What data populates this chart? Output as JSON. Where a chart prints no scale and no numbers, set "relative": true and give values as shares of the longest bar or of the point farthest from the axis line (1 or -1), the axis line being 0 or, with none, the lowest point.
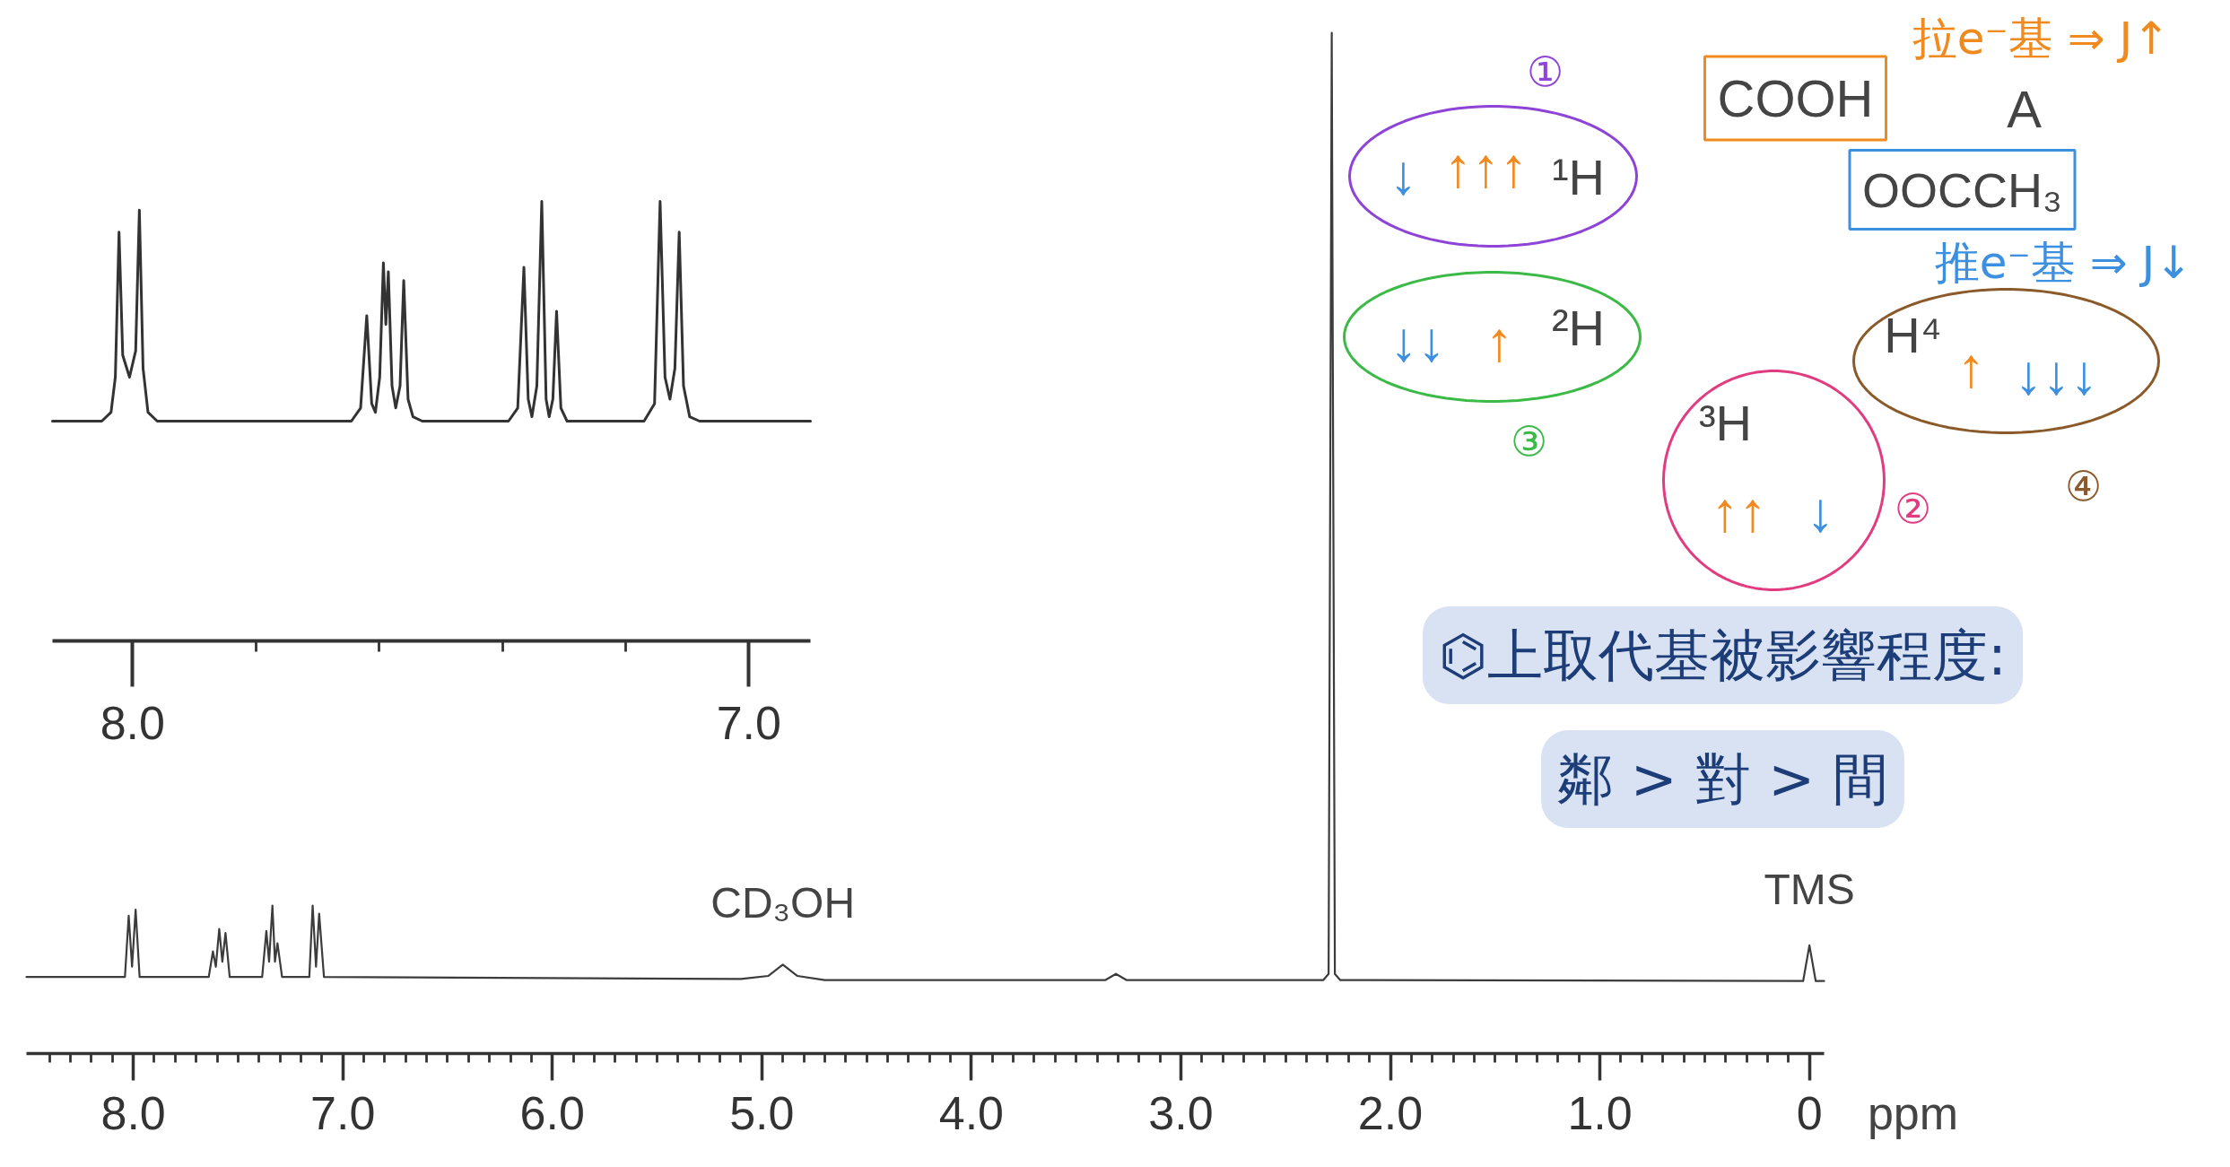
{
  "chart_data": [
    {
      "type": "line",
      "relative": true,
      "color": "#3c3c3c",
      "xlabel": "ppm",
      "x": [
        8.51,
        8.04,
        8.022,
        8.006,
        7.989,
        7.97,
        7.64,
        7.62,
        7.606,
        7.59,
        7.575,
        7.56,
        7.54,
        7.385,
        7.365,
        7.352,
        7.336,
        7.324,
        7.312,
        7.29,
        7.16,
        7.144,
        7.128,
        7.113,
        7.09,
        5.1,
        4.97,
        4.9,
        4.83,
        4.7,
        3.36,
        3.31,
        3.26,
        2.32,
        2.295,
        2.28,
        2.265,
        2.24,
        0.03,
        0.0,
        -0.03,
        -0.07
      ],
      "values": [
        0.075,
        0.075,
        0.135,
        0.085,
        0.141,
        0.075,
        0.075,
        0.1,
        0.085,
        0.122,
        0.09,
        0.118,
        0.075,
        0.075,
        0.12,
        0.09,
        0.145,
        0.09,
        0.108,
        0.075,
        0.075,
        0.145,
        0.085,
        0.137,
        0.075,
        0.073,
        0.076,
        0.087,
        0.076,
        0.072,
        0.072,
        0.078,
        0.072,
        0.072,
        0.078,
        1.0,
        0.078,
        0.072,
        0.071,
        0.106,
        0.071,
        0.071
      ],
      "xlim": [
        8.51,
        -0.07
      ],
      "xticks": [
        {
          "value": 8.4,
          "label": null
        },
        {
          "value": 8.3,
          "label": null
        },
        {
          "value": 8.2,
          "label": null
        },
        {
          "value": 8.1,
          "label": null
        },
        {
          "value": 8.0,
          "label": "8.0"
        },
        {
          "value": 7.9,
          "label": null
        },
        {
          "value": 7.8,
          "label": null
        },
        {
          "value": 7.7,
          "label": null
        },
        {
          "value": 7.6,
          "label": null
        },
        {
          "value": 7.5,
          "label": null
        },
        {
          "value": 7.4,
          "label": null
        },
        {
          "value": 7.3,
          "label": null
        },
        {
          "value": 7.2,
          "label": null
        },
        {
          "value": 7.1,
          "label": null
        },
        {
          "value": 7.0,
          "label": "7.0"
        },
        {
          "value": 6.9,
          "label": null
        },
        {
          "value": 6.8,
          "label": null
        },
        {
          "value": 6.7,
          "label": null
        },
        {
          "value": 6.6,
          "label": null
        },
        {
          "value": 6.5,
          "label": null
        },
        {
          "value": 6.4,
          "label": null
        },
        {
          "value": 6.3,
          "label": null
        },
        {
          "value": 6.2,
          "label": null
        },
        {
          "value": 6.1,
          "label": null
        },
        {
          "value": 6.0,
          "label": "6.0"
        },
        {
          "value": 5.9,
          "label": null
        },
        {
          "value": 5.8,
          "label": null
        },
        {
          "value": 5.7,
          "label": null
        },
        {
          "value": 5.6,
          "label": null
        },
        {
          "value": 5.5,
          "label": null
        },
        {
          "value": 5.4,
          "label": null
        },
        {
          "value": 5.3,
          "label": null
        },
        {
          "value": 5.2,
          "label": null
        },
        {
          "value": 5.1,
          "label": null
        },
        {
          "value": 5.0,
          "label": "5.0"
        },
        {
          "value": 4.9,
          "label": null
        },
        {
          "value": 4.8,
          "label": null
        },
        {
          "value": 4.7,
          "label": null
        },
        {
          "value": 4.6,
          "label": null
        },
        {
          "value": 4.5,
          "label": null
        },
        {
          "value": 4.4,
          "label": null
        },
        {
          "value": 4.3,
          "label": null
        },
        {
          "value": 4.2,
          "label": null
        },
        {
          "value": 4.1,
          "label": null
        },
        {
          "value": 4.0,
          "label": "4.0"
        },
        {
          "value": 3.9,
          "label": null
        },
        {
          "value": 3.8,
          "label": null
        },
        {
          "value": 3.7,
          "label": null
        },
        {
          "value": 3.6,
          "label": null
        },
        {
          "value": 3.5,
          "label": null
        },
        {
          "value": 3.4,
          "label": null
        },
        {
          "value": 3.3,
          "label": null
        },
        {
          "value": 3.2,
          "label": null
        },
        {
          "value": 3.1,
          "label": null
        },
        {
          "value": 3.0,
          "label": "3.0"
        },
        {
          "value": 2.9,
          "label": null
        },
        {
          "value": 2.8,
          "label": null
        },
        {
          "value": 2.7,
          "label": null
        },
        {
          "value": 2.6,
          "label": null
        },
        {
          "value": 2.5,
          "label": null
        },
        {
          "value": 2.4,
          "label": null
        },
        {
          "value": 2.3,
          "label": null
        },
        {
          "value": 2.2,
          "label": null
        },
        {
          "value": 2.1,
          "label": null
        },
        {
          "value": 2.0,
          "label": "2.0"
        },
        {
          "value": 1.9,
          "label": null
        },
        {
          "value": 1.8,
          "label": null
        },
        {
          "value": 1.7,
          "label": null
        },
        {
          "value": 1.6,
          "label": null
        },
        {
          "value": 1.5,
          "label": null
        },
        {
          "value": 1.4,
          "label": null
        },
        {
          "value": 1.3,
          "label": null
        },
        {
          "value": 1.2,
          "label": null
        },
        {
          "value": 1.1,
          "label": null
        },
        {
          "value": 1.0,
          "label": "1.0"
        },
        {
          "value": 0.9,
          "label": null
        },
        {
          "value": 0.8,
          "label": null
        },
        {
          "value": 0.7,
          "label": null
        },
        {
          "value": 0.6,
          "label": null
        },
        {
          "value": 0.5,
          "label": null
        },
        {
          "value": 0.4,
          "label": null
        },
        {
          "value": 0.3,
          "label": null
        },
        {
          "value": 0.2,
          "label": null
        },
        {
          "value": 0.1,
          "label": null
        },
        0
      ],
      "annotations": [
        {
          "text": "CD₃OH",
          "x": 4.9,
          "y": 0.087
        },
        {
          "text": "TMS",
          "x": 0,
          "y": 0.106
        },
        "COOH",
        "A",
        "OOCCH₃",
        "¹H",
        "²H",
        "³H",
        "H⁴",
        "①",
        "↓",
        "↑↑↑",
        "②",
        "↑↑",
        "↓",
        "③",
        "↓↓",
        "↑",
        "④",
        "↑",
        "↓↓↓",
        "拉e⁻基 ⇒ J↑",
        "推e⁻基 ⇒ J↓",
        "⌬上取代基被影響程度:",
        "鄰 > 對 > 間"
      ]
    },
    {
      "type": "line",
      "relative": true,
      "color": "#333333",
      "x": [
        8.13,
        8.05,
        8.035,
        8.028,
        8.022,
        8.016,
        8.005,
        7.995,
        7.989,
        7.983,
        7.975,
        7.96,
        7.8,
        7.645,
        7.63,
        7.62,
        7.612,
        7.606,
        7.599,
        7.593,
        7.589,
        7.585,
        7.579,
        7.573,
        7.566,
        7.56,
        7.553,
        7.545,
        7.53,
        7.39,
        7.375,
        7.365,
        7.358,
        7.352,
        7.344,
        7.336,
        7.329,
        7.324,
        7.318,
        7.312,
        7.305,
        7.295,
        7.17,
        7.153,
        7.144,
        7.136,
        7.128,
        7.12,
        7.113,
        7.106,
        7.096,
        7.08,
        6.9
      ],
      "values": [
        0.5,
        0.5,
        0.52,
        0.6,
        0.93,
        0.65,
        0.6,
        0.66,
        0.98,
        0.62,
        0.52,
        0.5,
        0.5,
        0.5,
        0.53,
        0.74,
        0.54,
        0.52,
        0.6,
        0.86,
        0.72,
        0.84,
        0.58,
        0.53,
        0.58,
        0.82,
        0.55,
        0.51,
        0.5,
        0.5,
        0.53,
        0.85,
        0.55,
        0.51,
        0.58,
        1.0,
        0.55,
        0.51,
        0.55,
        0.75,
        0.53,
        0.5,
        0.5,
        0.54,
        1.0,
        0.6,
        0.55,
        0.62,
        0.93,
        0.58,
        0.51,
        0.5,
        0.5
      ],
      "xlim": [
        8.13,
        6.9
      ],
      "xticks": [
        {
          "value": 8.0,
          "label": "8.0"
        },
        {
          "value": 7.8,
          "label": null
        },
        {
          "value": 7.6,
          "label": null
        },
        {
          "value": 7.4,
          "label": null
        },
        {
          "value": 7.2,
          "label": null
        },
        {
          "value": 7.0,
          "label": "7.0"
        }
      ]
    }
  ]
}
